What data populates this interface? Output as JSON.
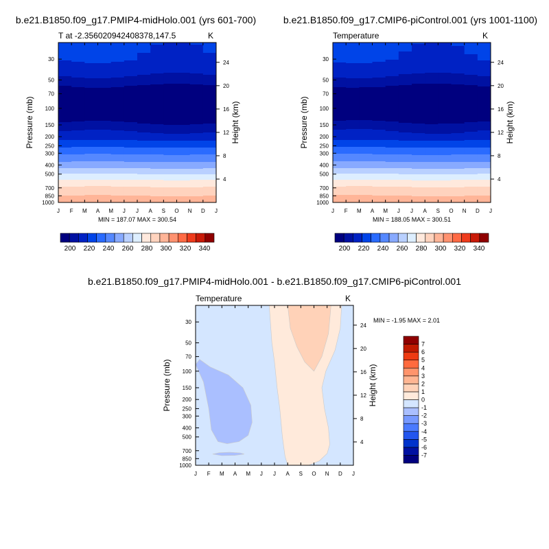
{
  "colors": {
    "temperature_levels": [
      "#00007f",
      "#0011a2",
      "#0022c4",
      "#0044e8",
      "#2a6bff",
      "#5588ff",
      "#88aaff",
      "#b9d0ff",
      "#ddeeff",
      "#ffe9dd",
      "#ffd3be",
      "#ffb598",
      "#ff9270",
      "#ff6a44",
      "#ee3b1c",
      "#c91a08",
      "#8f0000"
    ],
    "difference_levels": [
      "#00007f",
      "#0011a2",
      "#0033cc",
      "#2255ee",
      "#4a7aff",
      "#7799ff",
      "#aabfff",
      "#d4e6ff",
      "#ffeadb",
      "#ffd2b8",
      "#ffb592",
      "#ff946c",
      "#ff6a3e",
      "#ee3b12",
      "#c01a00",
      "#8f0000"
    ]
  },
  "chart_data": [
    {
      "type": "contour",
      "title": "b.e21.B1850.f09_g17.PMIP4-midHolo.001 (yrs 601-700)",
      "left_label": "T at -2.356020942408378,147.5",
      "units_label": "K",
      "ylabel": "Pressure (mb)",
      "ylabel_right": "Height (km)",
      "x_ticks": [
        "J",
        "F",
        "M",
        "A",
        "M",
        "J",
        "J",
        "A",
        "S",
        "O",
        "N",
        "D",
        "J"
      ],
      "pressure_ticks": [
        30,
        50,
        70,
        100,
        150,
        200,
        250,
        300,
        400,
        500,
        700,
        850,
        1000
      ],
      "height_ticks": [
        4,
        8,
        12,
        16,
        20,
        24
      ],
      "ylim": [
        1000,
        20
      ],
      "stats": "MIN = 187.07 MAX = 300.54",
      "colorbar_ticks": [
        200,
        220,
        240,
        260,
        280,
        300,
        320,
        340
      ],
      "colorbar_range": [
        190,
        350
      ],
      "colorbar_orientation": "horizontal",
      "profile": {
        "pressure": [
          20,
          30,
          40,
          50,
          60,
          70,
          85,
          100,
          120,
          150,
          200,
          250,
          300,
          400,
          500,
          600,
          700,
          850,
          1000
        ],
        "temperature": [
          220,
          218,
          212,
          205,
          197,
          190,
          187.5,
          188,
          192,
          202,
          214,
          226,
          236,
          251,
          266,
          278,
          286,
          294,
          300
        ]
      }
    },
    {
      "type": "contour",
      "title": "b.e21.B1850.f09_g17.CMIP6-piControl.001 (yrs 1001-1100)",
      "left_label": "Temperature",
      "units_label": "K",
      "ylabel": "Pressure (mb)",
      "ylabel_right": "Height (km)",
      "x_ticks": [
        "J",
        "F",
        "M",
        "A",
        "M",
        "J",
        "J",
        "A",
        "S",
        "O",
        "N",
        "D",
        "J"
      ],
      "pressure_ticks": [
        30,
        50,
        70,
        100,
        150,
        200,
        250,
        300,
        400,
        500,
        700,
        850,
        1000
      ],
      "height_ticks": [
        4,
        8,
        12,
        16,
        20,
        24
      ],
      "ylim": [
        1000,
        20
      ],
      "stats": "MIN = 188.05 MAX = 300.51",
      "colorbar_ticks": [
        200,
        220,
        240,
        260,
        280,
        300,
        320,
        340
      ],
      "colorbar_range": [
        190,
        350
      ],
      "colorbar_orientation": "horizontal",
      "profile": {
        "pressure": [
          20,
          30,
          40,
          50,
          60,
          70,
          85,
          100,
          120,
          150,
          200,
          250,
          300,
          400,
          500,
          600,
          700,
          850,
          1000
        ],
        "temperature": [
          220,
          218,
          212,
          205,
          197,
          190,
          188.5,
          189,
          193,
          203,
          214,
          226,
          236,
          251,
          266,
          278,
          286,
          294,
          300
        ]
      }
    },
    {
      "type": "contour",
      "title": "b.e21.B1850.f09_g17.PMIP4-midHolo.001 - b.e21.B1850.f09_g17.CMIP6-piControl.001",
      "left_label": "Temperature",
      "units_label": "K",
      "ylabel": "Pressure (mb)",
      "ylabel_right": "Height (km)",
      "x_ticks": [
        "J",
        "F",
        "M",
        "A",
        "M",
        "J",
        "J",
        "A",
        "S",
        "O",
        "N",
        "D",
        "J"
      ],
      "pressure_ticks": [
        30,
        50,
        70,
        100,
        150,
        200,
        250,
        300,
        400,
        500,
        700,
        850,
        1000
      ],
      "height_ticks": [
        4,
        8,
        12,
        16,
        20,
        24
      ],
      "ylim": [
        1000,
        20
      ],
      "stats": "MIN =  -1.95 MAX =   2.01",
      "colorbar_ticks": [
        -7,
        -6,
        -5,
        -4,
        -3,
        -2,
        -1,
        0,
        1,
        2,
        3,
        4,
        5,
        6,
        7
      ],
      "colorbar_range": [
        -8,
        8
      ],
      "colorbar_orientation": "vertical",
      "regions": [
        {
          "level": "-1 to 0",
          "months": [
            0,
            12
          ],
          "pressure": [
            20,
            1000
          ]
        },
        {
          "level": "0 to 1",
          "months": [
            5.5,
            11.2
          ],
          "pressure": [
            20,
            1000
          ]
        },
        {
          "level": "1 to 2",
          "months": [
            7,
            10.4
          ],
          "pressure": [
            20,
            95
          ]
        },
        {
          "level": "-2 to -1",
          "months": [
            1.1,
            4.3
          ],
          "pressure": [
            70,
            600
          ]
        },
        {
          "level": "-2 to -1",
          "months": [
            1.3,
            3.6
          ],
          "pressure": [
            730,
            800
          ]
        }
      ]
    }
  ]
}
